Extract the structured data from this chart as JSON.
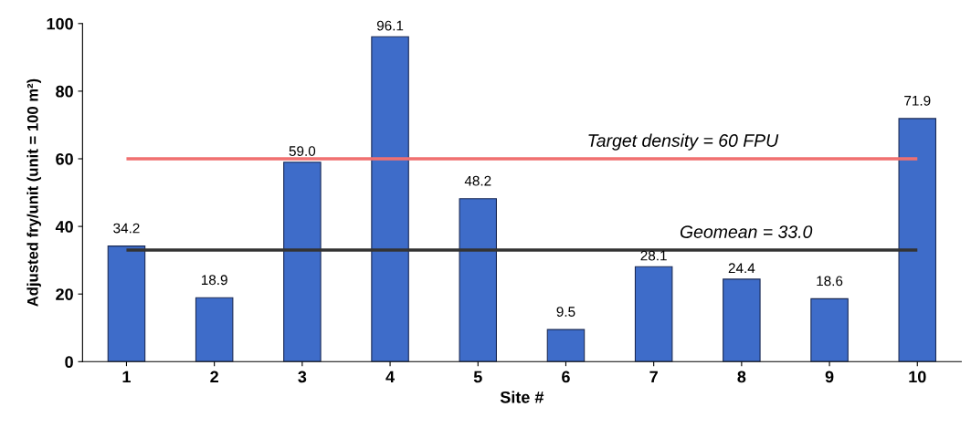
{
  "chart_data": {
    "type": "bar",
    "xlabel": "Site #",
    "ylabel": "Adjusted fry/unit (unit = 100 m²)",
    "categories": [
      "1",
      "2",
      "3",
      "4",
      "5",
      "6",
      "7",
      "8",
      "9",
      "10"
    ],
    "values": [
      34.2,
      18.9,
      59.0,
      96.1,
      48.2,
      9.5,
      28.1,
      24.4,
      18.6,
      71.9
    ],
    "value_labels": [
      "34.2",
      "18.9",
      "59.0",
      "96.1",
      "48.2",
      "9.5",
      "28.1",
      "24.4",
      "18.6",
      "71.9"
    ],
    "color": "#3e6cc9",
    "ylim": [
      0,
      100
    ],
    "yticks": [
      0,
      20,
      40,
      60,
      80,
      100
    ],
    "grid": false,
    "ref_lines": [
      {
        "axis": "y",
        "value": 60,
        "label": "Target density = 60 FPU",
        "color": "#f07070",
        "line_style": "solid"
      },
      {
        "axis": "y",
        "value": 33.0,
        "label": "Geomean = 33.0",
        "color": "#333333",
        "line_style": "solid"
      }
    ]
  }
}
